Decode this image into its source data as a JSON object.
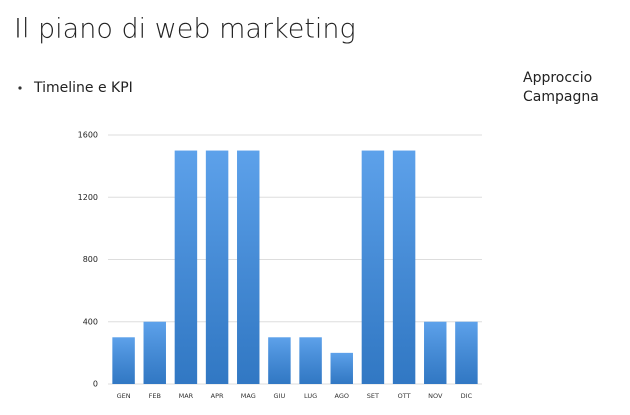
{
  "slide": {
    "title": "Il piano di web marketing",
    "bullet": "Timeline e KPI",
    "side_text": [
      "Approccio",
      "Campagna"
    ]
  },
  "chart_data": {
    "type": "bar",
    "categories": [
      "GEN",
      "FEB",
      "MAR",
      "APR",
      "MAG",
      "GIU",
      "LUG",
      "AGO",
      "SET",
      "OTT",
      "NOV",
      "DIC"
    ],
    "values": [
      300,
      400,
      1500,
      1500,
      1500,
      300,
      300,
      200,
      1500,
      1500,
      400,
      400
    ],
    "color": "#3a8de6",
    "ylim": [
      0,
      1600
    ],
    "yticks": [
      0,
      400,
      800,
      1200,
      1600
    ],
    "grid": true
  }
}
